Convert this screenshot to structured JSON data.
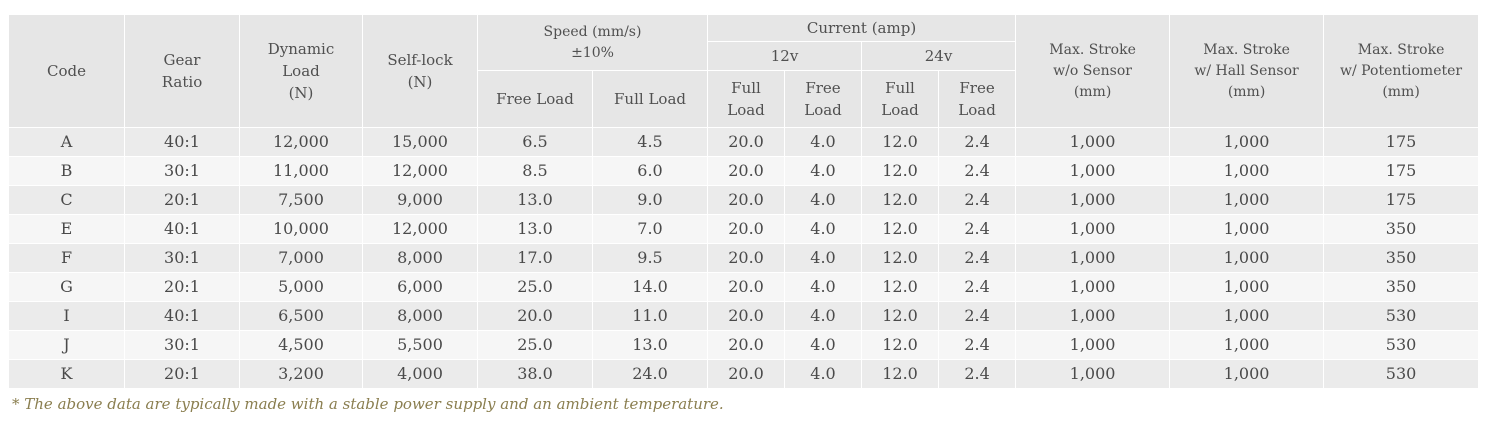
{
  "headers": {
    "code": "Code",
    "gear_ratio": [
      "Gear",
      "Ratio"
    ],
    "dynamic_load": [
      "Dynamic",
      "Load",
      "(N)"
    ],
    "self_lock": [
      "Self-lock",
      "(N)"
    ],
    "speed": [
      "Speed (mm/s)",
      "±10%"
    ],
    "current": "Current (amp)",
    "v12": "12v",
    "v24": "24v",
    "free_load": "Free Load",
    "full_load": "Full Load",
    "full": [
      "Full",
      "Load"
    ],
    "free": [
      "Free",
      "Load"
    ],
    "stroke_no_sensor": [
      "Max. Stroke",
      "w/o Sensor",
      "(mm)"
    ],
    "stroke_hall": [
      "Max. Stroke",
      "w/ Hall Sensor",
      "(mm)"
    ],
    "stroke_pot": [
      "Max. Stroke",
      "w/ Potentiometer",
      "(mm)"
    ]
  },
  "rows": [
    [
      "A",
      "40:1",
      "12,000",
      "15,000",
      "6.5",
      "4.5",
      "20.0",
      "4.0",
      "12.0",
      "2.4",
      "1,000",
      "1,000",
      "175"
    ],
    [
      "B",
      "30:1",
      "11,000",
      "12,000",
      "8.5",
      "6.0",
      "20.0",
      "4.0",
      "12.0",
      "2.4",
      "1,000",
      "1,000",
      "175"
    ],
    [
      "C",
      "20:1",
      "7,500",
      "9,000",
      "13.0",
      "9.0",
      "20.0",
      "4.0",
      "12.0",
      "2.4",
      "1,000",
      "1,000",
      "175"
    ],
    [
      "E",
      "40:1",
      "10,000",
      "12,000",
      "13.0",
      "7.0",
      "20.0",
      "4.0",
      "12.0",
      "2.4",
      "1,000",
      "1,000",
      "350"
    ],
    [
      "F",
      "30:1",
      "7,000",
      "8,000",
      "17.0",
      "9.5",
      "20.0",
      "4.0",
      "12.0",
      "2.4",
      "1,000",
      "1,000",
      "350"
    ],
    [
      "G",
      "20:1",
      "5,000",
      "6,000",
      "25.0",
      "14.0",
      "20.0",
      "4.0",
      "12.0",
      "2.4",
      "1,000",
      "1,000",
      "350"
    ],
    [
      "I",
      "40:1",
      "6,500",
      "8,000",
      "20.0",
      "11.0",
      "20.0",
      "4.0",
      "12.0",
      "2.4",
      "1,000",
      "1,000",
      "530"
    ],
    [
      "J",
      "30:1",
      "4,500",
      "5,500",
      "25.0",
      "13.0",
      "20.0",
      "4.0",
      "12.0",
      "2.4",
      "1,000",
      "1,000",
      "530"
    ],
    [
      "K",
      "20:1",
      "3,200",
      "4,000",
      "38.0",
      "24.0",
      "20.0",
      "4.0",
      "12.0",
      "2.4",
      "1,000",
      "1,000",
      "530"
    ]
  ],
  "footnote": "* The above data are typically made with a stable power supply and an ambient temperature."
}
